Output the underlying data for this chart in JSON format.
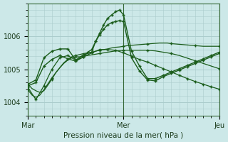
{
  "title": "Pression niveau de la mer( hPa )",
  "bg_color": "#cce8e8",
  "plot_bg_color": "#cce8e8",
  "grid_color": "#aacccc",
  "line_color": "#1a5c1a",
  "xlim": [
    0,
    48
  ],
  "ylim": [
    1003.6,
    1007.0
  ],
  "yticks": [
    1004,
    1005,
    1006
  ],
  "xtick_labels": [
    "Mar",
    "Mer",
    "Jeu"
  ],
  "xtick_positions": [
    0,
    24,
    48
  ],
  "series": [
    {
      "x": [
        0,
        1,
        2,
        3,
        4,
        5,
        6,
        7,
        8,
        9,
        10,
        11,
        12,
        13,
        14,
        15,
        16,
        17,
        18,
        19,
        20,
        21,
        22,
        23,
        24,
        25,
        26,
        27,
        28,
        29,
        30,
        31,
        32,
        33,
        34,
        35,
        36,
        37,
        38,
        39,
        40,
        41,
        42,
        43,
        44,
        45,
        46,
        47,
        48
      ],
      "y": [
        1004.55,
        1004.42,
        1004.35,
        1004.3,
        1004.35,
        1004.52,
        1004.7,
        1004.9,
        1005.05,
        1005.2,
        1005.3,
        1005.38,
        1005.42,
        1005.45,
        1005.48,
        1005.5,
        1005.52,
        1005.55,
        1005.58,
        1005.6,
        1005.62,
        1005.65,
        1005.67,
        1005.68,
        1005.7,
        1005.72,
        1005.73,
        1005.74,
        1005.75,
        1005.76,
        1005.77,
        1005.78,
        1005.79,
        1005.8,
        1005.8,
        1005.8,
        1005.78,
        1005.77,
        1005.76,
        1005.75,
        1005.74,
        1005.73,
        1005.72,
        1005.71,
        1005.7,
        1005.7,
        1005.7,
        1005.7,
        1005.7
      ],
      "markevery": 6,
      "lw": 0.9
    },
    {
      "x": [
        0,
        1,
        2,
        3,
        4,
        5,
        6,
        7,
        8,
        9,
        10,
        11,
        12,
        13,
        14,
        15,
        16,
        17,
        18,
        19,
        20,
        21,
        22,
        23,
        24,
        25,
        26,
        27,
        28,
        29,
        30,
        31,
        32,
        33,
        34,
        35,
        36,
        37,
        38,
        39,
        40,
        41,
        42,
        43,
        44,
        45,
        46,
        47,
        48
      ],
      "y": [
        1004.38,
        1004.22,
        1004.15,
        1004.22,
        1004.38,
        1004.56,
        1004.74,
        1004.9,
        1005.05,
        1005.18,
        1005.28,
        1005.35,
        1005.38,
        1005.38,
        1005.4,
        1005.42,
        1005.44,
        1005.46,
        1005.48,
        1005.5,
        1005.52,
        1005.54,
        1005.56,
        1005.57,
        1005.58,
        1005.58,
        1005.58,
        1005.58,
        1005.58,
        1005.58,
        1005.58,
        1005.57,
        1005.56,
        1005.54,
        1005.52,
        1005.5,
        1005.48,
        1005.45,
        1005.42,
        1005.38,
        1005.34,
        1005.3,
        1005.26,
        1005.22,
        1005.18,
        1005.14,
        1005.1,
        1005.06,
        1005.02
      ],
      "markevery": 6,
      "lw": 0.9
    },
    {
      "x": [
        0,
        2,
        4,
        6,
        8,
        10,
        12,
        14,
        16,
        18,
        20,
        22,
        24,
        26,
        28,
        30,
        32,
        34,
        36,
        38,
        40,
        42,
        44,
        46,
        48
      ],
      "y": [
        1004.45,
        1004.08,
        1004.5,
        1005.0,
        1005.35,
        1005.42,
        1005.28,
        1005.38,
        1005.5,
        1005.6,
        1005.6,
        1005.58,
        1005.5,
        1005.4,
        1005.3,
        1005.22,
        1005.12,
        1005.02,
        1004.92,
        1004.82,
        1004.72,
        1004.63,
        1004.55,
        1004.47,
        1004.4
      ],
      "markevery": 1,
      "lw": 0.9
    },
    {
      "x": [
        0,
        2,
        4,
        6,
        8,
        10,
        12,
        14,
        16,
        17,
        18,
        19,
        20,
        21,
        22,
        23,
        24,
        26,
        28,
        30,
        32,
        34,
        36,
        38,
        40,
        42,
        44,
        46,
        48
      ],
      "y": [
        1004.55,
        1004.68,
        1005.35,
        1005.55,
        1005.62,
        1005.62,
        1005.28,
        1005.45,
        1005.52,
        1005.85,
        1006.1,
        1006.35,
        1006.55,
        1006.65,
        1006.75,
        1006.8,
        1006.65,
        1005.55,
        1005.1,
        1004.72,
        1004.72,
        1004.82,
        1004.92,
        1005.02,
        1005.12,
        1005.22,
        1005.32,
        1005.42,
        1005.52
      ],
      "markevery": 1,
      "lw": 1.0
    },
    {
      "x": [
        0,
        2,
        4,
        6,
        8,
        10,
        12,
        14,
        15,
        16,
        17,
        18,
        19,
        20,
        21,
        22,
        23,
        24,
        26,
        28,
        30,
        32,
        34,
        36,
        38,
        40,
        42,
        44,
        46,
        48
      ],
      "y": [
        1004.5,
        1004.6,
        1005.1,
        1005.3,
        1005.42,
        1005.32,
        1005.25,
        1005.38,
        1005.52,
        1005.6,
        1005.85,
        1006.05,
        1006.22,
        1006.35,
        1006.42,
        1006.45,
        1006.48,
        1006.45,
        1005.35,
        1004.95,
        1004.68,
        1004.65,
        1004.78,
        1004.88,
        1004.98,
        1005.08,
        1005.18,
        1005.28,
        1005.38,
        1005.48
      ],
      "markevery": 1,
      "lw": 1.0
    }
  ]
}
